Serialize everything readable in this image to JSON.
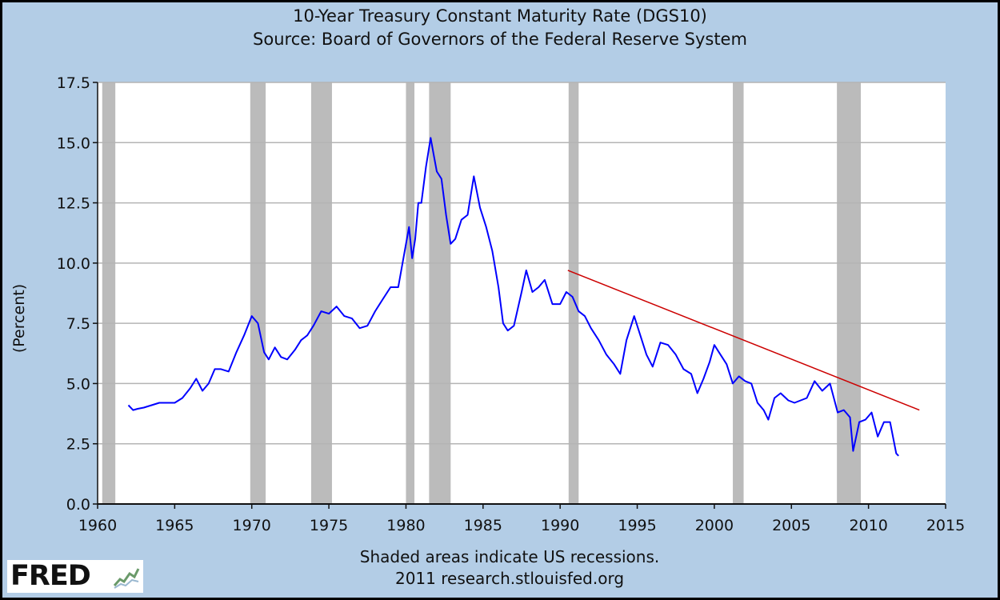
{
  "chart_data": {
    "type": "line",
    "title": "10-Year Treasury Constant Maturity Rate (DGS10)",
    "subtitle": "Source: Board of Governors of the Federal Reserve System",
    "ylabel": "(Percent)",
    "xlabel": "",
    "xlim": [
      1960,
      2015
    ],
    "ylim": [
      0,
      17.5
    ],
    "x_ticks": [
      "1960",
      "1965",
      "1970",
      "1975",
      "1980",
      "1985",
      "1990",
      "1995",
      "2000",
      "2005",
      "2010",
      "2015"
    ],
    "y_ticks": [
      "0.0",
      "2.5",
      "5.0",
      "7.5",
      "10.0",
      "12.5",
      "15.0",
      "17.5"
    ],
    "grid": true,
    "line_color": "#0000ff",
    "trend_color": "#cc0000",
    "recession_color": "#bbbbbb",
    "recessions": [
      [
        1960.3,
        1961.15
      ],
      [
        1969.9,
        1970.9
      ],
      [
        1973.85,
        1975.2
      ],
      [
        1980.0,
        1980.55
      ],
      [
        1981.5,
        1982.9
      ],
      [
        1990.55,
        1991.2
      ],
      [
        2001.2,
        2001.9
      ],
      [
        2007.95,
        2009.5
      ]
    ],
    "series": [
      {
        "x": [
          1962.0,
          1962.3,
          1962.6,
          1963.0,
          1963.5,
          1964.0,
          1964.5,
          1965.0,
          1965.5,
          1966.0,
          1966.4,
          1966.8,
          1967.2,
          1967.6,
          1968.0,
          1968.5,
          1969.0,
          1969.5,
          1970.0,
          1970.4,
          1970.8,
          1971.1,
          1971.5,
          1971.9,
          1972.3,
          1972.8,
          1973.2,
          1973.6,
          1974.0,
          1974.5,
          1975.0,
          1975.5,
          1976.0,
          1976.5,
          1977.0,
          1977.5,
          1978.0,
          1978.5,
          1979.0,
          1979.5,
          1980.0,
          1980.2,
          1980.4,
          1980.6,
          1980.8,
          1981.0,
          1981.3,
          1981.6,
          1981.8,
          1982.0,
          1982.3,
          1982.6,
          1982.9,
          1983.2,
          1983.6,
          1984.0,
          1984.4,
          1984.8,
          1985.2,
          1985.6,
          1986.0,
          1986.3,
          1986.6,
          1987.0,
          1987.5,
          1987.8,
          1988.2,
          1988.6,
          1989.0,
          1989.5,
          1990.0,
          1990.4,
          1990.8,
          1991.2,
          1991.6,
          1992.0,
          1992.5,
          1993.0,
          1993.5,
          1993.9,
          1994.3,
          1994.8,
          1995.2,
          1995.6,
          1996.0,
          1996.5,
          1997.0,
          1997.5,
          1998.0,
          1998.5,
          1998.9,
          1999.3,
          1999.7,
          2000.0,
          2000.4,
          2000.8,
          2001.2,
          2001.6,
          2002.0,
          2002.4,
          2002.8,
          2003.2,
          2003.5,
          2003.9,
          2004.3,
          2004.8,
          2005.2,
          2005.6,
          2006.0,
          2006.5,
          2007.0,
          2007.5,
          2008.0,
          2008.4,
          2008.8,
          2009.0,
          2009.4,
          2009.8,
          2010.2,
          2010.6,
          2011.0,
          2011.4,
          2011.8,
          2011.95
        ],
        "y": [
          4.1,
          3.9,
          3.95,
          4.0,
          4.1,
          4.2,
          4.2,
          4.2,
          4.4,
          4.8,
          5.2,
          4.7,
          5.0,
          5.6,
          5.6,
          5.5,
          6.3,
          7.0,
          7.8,
          7.5,
          6.3,
          6.0,
          6.5,
          6.1,
          6.0,
          6.4,
          6.8,
          7.0,
          7.4,
          8.0,
          7.9,
          8.2,
          7.8,
          7.7,
          7.3,
          7.4,
          8.0,
          8.5,
          9.0,
          9.0,
          10.8,
          11.5,
          10.2,
          11.0,
          12.5,
          12.5,
          14.0,
          15.2,
          14.5,
          13.8,
          13.5,
          12.0,
          10.8,
          11.0,
          11.8,
          12.0,
          13.6,
          12.3,
          11.5,
          10.5,
          9.0,
          7.5,
          7.2,
          7.4,
          8.8,
          9.7,
          8.8,
          9.0,
          9.3,
          8.3,
          8.3,
          8.8,
          8.6,
          8.0,
          7.8,
          7.3,
          6.8,
          6.2,
          5.8,
          5.4,
          6.8,
          7.8,
          7.0,
          6.2,
          5.7,
          6.7,
          6.6,
          6.2,
          5.6,
          5.4,
          4.6,
          5.2,
          5.9,
          6.6,
          6.2,
          5.8,
          5.0,
          5.3,
          5.1,
          5.0,
          4.2,
          3.9,
          3.5,
          4.4,
          4.6,
          4.3,
          4.2,
          4.3,
          4.4,
          5.1,
          4.7,
          5.0,
          3.8,
          3.9,
          3.6,
          2.2,
          3.4,
          3.5,
          3.8,
          2.8,
          3.4,
          3.4,
          2.1,
          2.0
        ]
      }
    ],
    "trend_line": {
      "x": [
        1990.5,
        2013.3
      ],
      "y": [
        9.7,
        3.9
      ]
    },
    "notes": [
      "Shaded areas indicate US recessions.",
      "2011 research.stlouisfed.org"
    ],
    "logo_text": "FRED"
  }
}
